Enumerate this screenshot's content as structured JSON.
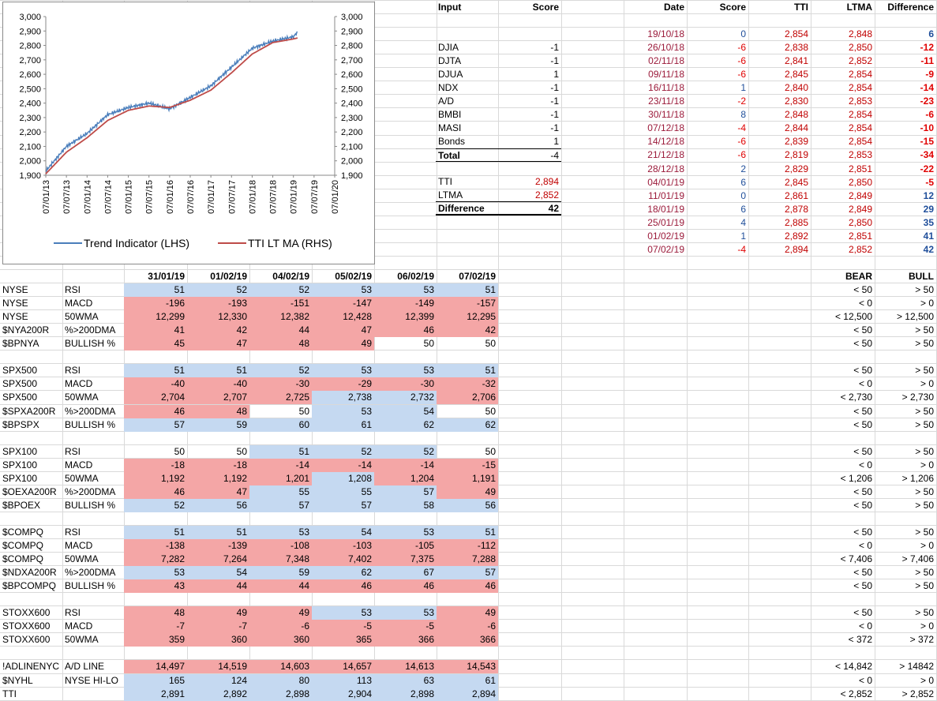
{
  "chart": {
    "y_ticks": [
      "3,000",
      "2,900",
      "2,800",
      "2,700",
      "2,600",
      "2,500",
      "2,400",
      "2,300",
      "2,200",
      "2,100",
      "2,000",
      "1,900"
    ],
    "x_ticks": [
      "07/01/13",
      "07/07/13",
      "07/01/14",
      "07/07/14",
      "07/01/15",
      "07/07/15",
      "07/01/16",
      "07/07/16",
      "07/01/17",
      "07/07/17",
      "07/01/18",
      "07/07/18",
      "07/01/19",
      "07/07/19",
      "07/01/20"
    ],
    "legend": [
      "Trend Indicator (LHS)",
      "TTI LT MA (RHS)"
    ],
    "colors": {
      "trend": "#4a7ebb",
      "ma": "#be4b48"
    }
  },
  "chart_data": {
    "type": "line",
    "ylim": [
      1900,
      3000
    ],
    "x": [
      2013.0,
      2013.5,
      2014.0,
      2014.5,
      2015.0,
      2015.5,
      2016.0,
      2016.5,
      2017.0,
      2017.5,
      2018.0,
      2018.5,
      2019.0,
      2019.1
    ],
    "series": [
      {
        "name": "Trend Indicator (LHS)",
        "values": [
          1930,
          2100,
          2190,
          2320,
          2370,
          2400,
          2360,
          2440,
          2520,
          2650,
          2780,
          2830,
          2860,
          2894
        ]
      },
      {
        "name": "TTI LT MA (RHS)",
        "values": [
          1910,
          2060,
          2160,
          2280,
          2350,
          2380,
          2370,
          2420,
          2490,
          2610,
          2740,
          2820,
          2845,
          2852
        ]
      }
    ]
  },
  "input_table": {
    "headers": [
      "Input",
      "Score"
    ],
    "rows": [
      [
        "DJIA",
        "-1"
      ],
      [
        "DJTA",
        "-1"
      ],
      [
        "DJUA",
        "1"
      ],
      [
        "NDX",
        "-1"
      ],
      [
        "A/D",
        "-1"
      ],
      [
        "BMBI",
        "-1"
      ],
      [
        "MASI",
        "-1"
      ],
      [
        "Bonds",
        "1"
      ]
    ],
    "total": [
      "Total",
      "-4"
    ],
    "tti": [
      "TTI",
      "2,894"
    ],
    "ltma": [
      "LTMA",
      "2,852"
    ],
    "difference": [
      "Difference",
      "42"
    ]
  },
  "history_table": {
    "headers": [
      "Date",
      "Score",
      "TTI",
      "LTMA",
      "Difference"
    ],
    "rows": [
      [
        "19/10/18",
        "0",
        "2,854",
        "2,848",
        "6"
      ],
      [
        "26/10/18",
        "-6",
        "2,838",
        "2,850",
        "-12"
      ],
      [
        "02/11/18",
        "-6",
        "2,841",
        "2,852",
        "-11"
      ],
      [
        "09/11/18",
        "-6",
        "2,845",
        "2,854",
        "-9"
      ],
      [
        "16/11/18",
        "1",
        "2,840",
        "2,854",
        "-14"
      ],
      [
        "23/11/18",
        "-2",
        "2,830",
        "2,853",
        "-23"
      ],
      [
        "30/11/18",
        "8",
        "2,848",
        "2,854",
        "-6"
      ],
      [
        "07/12/18",
        "-4",
        "2,844",
        "2,854",
        "-10"
      ],
      [
        "14/12/18",
        "-6",
        "2,839",
        "2,854",
        "-15"
      ],
      [
        "21/12/18",
        "-6",
        "2,819",
        "2,853",
        "-34"
      ],
      [
        "28/12/18",
        "2",
        "2,829",
        "2,851",
        "-22"
      ],
      [
        "04/01/19",
        "6",
        "2,845",
        "2,850",
        "-5"
      ],
      [
        "11/01/19",
        "0",
        "2,861",
        "2,849",
        "12"
      ],
      [
        "18/01/19",
        "6",
        "2,878",
        "2,849",
        "29"
      ],
      [
        "25/01/19",
        "4",
        "2,885",
        "2,850",
        "35"
      ],
      [
        "01/02/19",
        "1",
        "2,892",
        "2,851",
        "41"
      ],
      [
        "07/02/19",
        "-4",
        "2,894",
        "2,852",
        "42"
      ]
    ]
  },
  "indicators": {
    "dates": [
      "31/01/19",
      "01/02/19",
      "04/02/19",
      "05/02/19",
      "06/02/19",
      "07/02/19"
    ],
    "bear_label": "BEAR",
    "bull_label": "BULL",
    "groups": [
      {
        "rows": [
          {
            "sym": "NYSE",
            "ind": "RSI",
            "vals": [
              "51",
              "52",
              "52",
              "53",
              "53",
              "51"
            ],
            "bg": [
              "b",
              "b",
              "b",
              "b",
              "b",
              "b"
            ],
            "bear": "< 50",
            "bull": "> 50"
          },
          {
            "sym": "NYSE",
            "ind": "MACD",
            "vals": [
              "-196",
              "-193",
              "-151",
              "-147",
              "-149",
              "-157"
            ],
            "bg": [
              "r",
              "r",
              "r",
              "r",
              "r",
              "r"
            ],
            "bear": "< 0",
            "bull": "> 0"
          },
          {
            "sym": "NYSE",
            "ind": "50WMA",
            "vals": [
              "12,299",
              "12,330",
              "12,382",
              "12,428",
              "12,399",
              "12,295"
            ],
            "bg": [
              "r",
              "r",
              "r",
              "r",
              "r",
              "r"
            ],
            "bear": "< 12,500",
            "bull": "> 12,500"
          },
          {
            "sym": "$NYA200R",
            "ind": "%>200DMA",
            "vals": [
              "41",
              "42",
              "44",
              "47",
              "46",
              "42"
            ],
            "bg": [
              "r",
              "r",
              "r",
              "r",
              "r",
              "r"
            ],
            "bear": "< 50",
            "bull": "> 50"
          },
          {
            "sym": "$BPNYA",
            "ind": "BULLISH %",
            "vals": [
              "45",
              "47",
              "48",
              "49",
              "50",
              "50"
            ],
            "bg": [
              "r",
              "r",
              "r",
              "r",
              "w",
              "w"
            ],
            "bear": "< 50",
            "bull": "> 50"
          }
        ]
      },
      {
        "rows": [
          {
            "sym": "SPX500",
            "ind": "RSI",
            "vals": [
              "51",
              "51",
              "52",
              "53",
              "53",
              "51"
            ],
            "bg": [
              "b",
              "b",
              "b",
              "b",
              "b",
              "b"
            ],
            "bear": "< 50",
            "bull": "> 50"
          },
          {
            "sym": "SPX500",
            "ind": "MACD",
            "vals": [
              "-40",
              "-40",
              "-30",
              "-29",
              "-30",
              "-32"
            ],
            "bg": [
              "r",
              "r",
              "r",
              "r",
              "r",
              "r"
            ],
            "bear": "< 0",
            "bull": "> 0"
          },
          {
            "sym": "SPX500",
            "ind": "50WMA",
            "vals": [
              "2,704",
              "2,707",
              "2,725",
              "2,738",
              "2,732",
              "2,706"
            ],
            "bg": [
              "r",
              "r",
              "r",
              "b",
              "b",
              "r"
            ],
            "bear": "< 2,730",
            "bull": "> 2,730"
          },
          {
            "sym": "$SPXA200R",
            "ind": "%>200DMA",
            "vals": [
              "46",
              "48",
              "50",
              "53",
              "54",
              "50"
            ],
            "bg": [
              "r",
              "r",
              "w",
              "b",
              "b",
              "w"
            ],
            "bear": "< 50",
            "bull": "> 50"
          },
          {
            "sym": "$BPSPX",
            "ind": "BULLISH %",
            "vals": [
              "57",
              "59",
              "60",
              "61",
              "62",
              "62"
            ],
            "bg": [
              "b",
              "b",
              "b",
              "b",
              "b",
              "b"
            ],
            "bear": "< 50",
            "bull": "> 50"
          }
        ]
      },
      {
        "rows": [
          {
            "sym": "SPX100",
            "ind": "RSI",
            "vals": [
              "50",
              "50",
              "51",
              "52",
              "52",
              "50"
            ],
            "bg": [
              "w",
              "w",
              "b",
              "b",
              "b",
              "w"
            ],
            "bear": "< 50",
            "bull": "> 50"
          },
          {
            "sym": "SPX100",
            "ind": "MACD",
            "vals": [
              "-18",
              "-18",
              "-14",
              "-14",
              "-14",
              "-15"
            ],
            "bg": [
              "r",
              "r",
              "r",
              "r",
              "r",
              "r"
            ],
            "bear": "< 0",
            "bull": "> 0"
          },
          {
            "sym": "SPX100",
            "ind": "50WMA",
            "vals": [
              "1,192",
              "1,192",
              "1,201",
              "1,208",
              "1,204",
              "1,191"
            ],
            "bg": [
              "r",
              "r",
              "r",
              "b",
              "r",
              "r"
            ],
            "bear": "< 1,206",
            "bull": "> 1,206"
          },
          {
            "sym": "$OEXA200R",
            "ind": "%>200DMA",
            "vals": [
              "46",
              "47",
              "55",
              "55",
              "57",
              "49"
            ],
            "bg": [
              "r",
              "r",
              "b",
              "b",
              "b",
              "r"
            ],
            "bear": "< 50",
            "bull": "> 50"
          },
          {
            "sym": "$BPOEX",
            "ind": "BULLISH %",
            "vals": [
              "52",
              "56",
              "57",
              "57",
              "58",
              "56"
            ],
            "bg": [
              "b",
              "b",
              "b",
              "b",
              "b",
              "b"
            ],
            "bear": "< 50",
            "bull": "> 50"
          }
        ]
      },
      {
        "rows": [
          {
            "sym": "$COMPQ",
            "ind": "RSI",
            "vals": [
              "51",
              "51",
              "53",
              "54",
              "53",
              "51"
            ],
            "bg": [
              "b",
              "b",
              "b",
              "b",
              "b",
              "b"
            ],
            "bear": "< 50",
            "bull": "> 50"
          },
          {
            "sym": "$COMPQ",
            "ind": "MACD",
            "vals": [
              "-138",
              "-139",
              "-108",
              "-103",
              "-105",
              "-112"
            ],
            "bg": [
              "r",
              "r",
              "r",
              "r",
              "r",
              "r"
            ],
            "bear": "< 0",
            "bull": "> 0"
          },
          {
            "sym": "$COMPQ",
            "ind": "50WMA",
            "vals": [
              "7,282",
              "7,264",
              "7,348",
              "7,402",
              "7,375",
              "7,288"
            ],
            "bg": [
              "r",
              "r",
              "r",
              "r",
              "r",
              "r"
            ],
            "bear": "< 7,406",
            "bull": "> 7,406"
          },
          {
            "sym": "$NDXA200R",
            "ind": "%>200DMA",
            "vals": [
              "53",
              "54",
              "59",
              "62",
              "67",
              "57"
            ],
            "bg": [
              "b",
              "b",
              "b",
              "b",
              "b",
              "b"
            ],
            "bear": "< 50",
            "bull": "> 50"
          },
          {
            "sym": "$BPCOMPQ",
            "ind": "BULLISH %",
            "vals": [
              "43",
              "44",
              "44",
              "46",
              "46",
              "46"
            ],
            "bg": [
              "r",
              "r",
              "r",
              "r",
              "r",
              "r"
            ],
            "bear": "< 50",
            "bull": "> 50"
          }
        ]
      },
      {
        "rows": [
          {
            "sym": "STOXX600",
            "ind": "RSI",
            "vals": [
              "48",
              "49",
              "49",
              "53",
              "53",
              "49"
            ],
            "bg": [
              "r",
              "r",
              "r",
              "b",
              "b",
              "r"
            ],
            "bear": "< 50",
            "bull": "> 50"
          },
          {
            "sym": "STOXX600",
            "ind": "MACD",
            "vals": [
              "-7",
              "-7",
              "-6",
              "-5",
              "-5",
              "-6"
            ],
            "bg": [
              "r",
              "r",
              "r",
              "r",
              "r",
              "r"
            ],
            "bear": "< 0",
            "bull": "> 0"
          },
          {
            "sym": "STOXX600",
            "ind": "50WMA",
            "vals": [
              "359",
              "360",
              "360",
              "365",
              "366",
              "366"
            ],
            "bg": [
              "r",
              "r",
              "r",
              "r",
              "r",
              "r"
            ],
            "bear": "< 372",
            "bull": "> 372"
          }
        ]
      },
      {
        "rows": [
          {
            "sym": "!ADLINENYC",
            "ind": "A/D LINE",
            "vals": [
              "14,497",
              "14,519",
              "14,603",
              "14,657",
              "14,613",
              "14,543"
            ],
            "bg": [
              "r",
              "r",
              "r",
              "r",
              "r",
              "r"
            ],
            "bear": "< 14,842",
            "bull": "> 14842"
          },
          {
            "sym": "$NYHL",
            "ind": "NYSE HI-LO",
            "vals": [
              "165",
              "124",
              "80",
              "113",
              "63",
              "61"
            ],
            "bg": [
              "b",
              "b",
              "b",
              "b",
              "b",
              "b"
            ],
            "bear": "< 0",
            "bull": "> 0"
          },
          {
            "sym": "TTI",
            "ind": "",
            "vals": [
              "2,891",
              "2,892",
              "2,898",
              "2,904",
              "2,898",
              "2,894"
            ],
            "bg": [
              "b",
              "b",
              "b",
              "b",
              "b",
              "b"
            ],
            "bear": "< 2,852",
            "bull": "> 2,852"
          }
        ]
      }
    ]
  }
}
